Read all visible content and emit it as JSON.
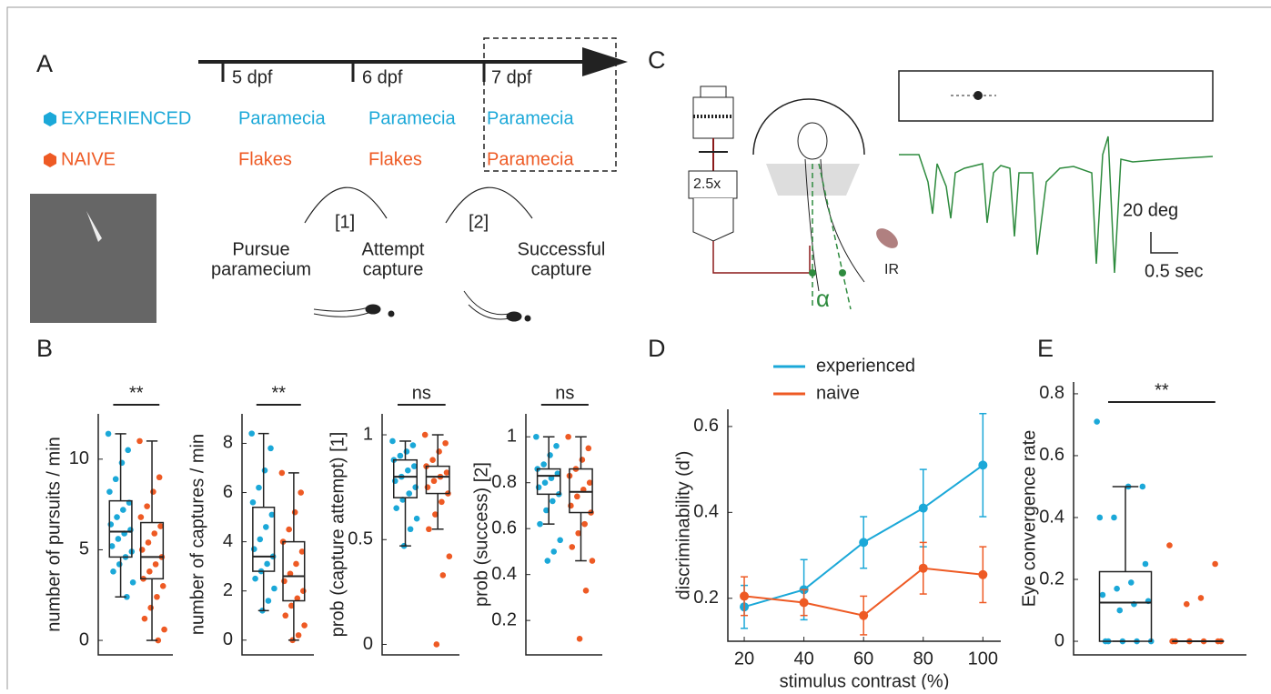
{
  "panel_labels": [
    "A",
    "B",
    "C",
    "D",
    "E"
  ],
  "timeline": {
    "ticks": [
      "5 dpf",
      "6 dpf",
      "7 dpf"
    ]
  },
  "groups": [
    {
      "name": "EXPERIENCED",
      "color": "#1ba8d8",
      "items": [
        "Paramecia",
        "Paramecia",
        "Paramecia"
      ]
    },
    {
      "name": "NAIVE",
      "color": "#ee5a24",
      "items": [
        "Flakes",
        "Flakes",
        "Paramecia"
      ]
    }
  ],
  "steps": [
    "[1]",
    "[2]"
  ],
  "stages": [
    [
      "Pursue",
      "paramecium"
    ],
    [
      "Attempt",
      "capture"
    ],
    [
      "Successful",
      "capture"
    ]
  ],
  "setup": {
    "objective": "2.5x",
    "angle": "α",
    "light": "IR",
    "scale_y": "20 deg",
    "scale_x": "0.5 sec"
  },
  "chart_data": [
    {
      "type": "box",
      "ylabel": "number of pursuits / min",
      "ylim": [
        -0.8,
        12.5
      ],
      "yticks": [
        0,
        5,
        10
      ],
      "annotation": "**",
      "series": [
        {
          "color": "#1ba8d8",
          "stats": {
            "whislo": 2.4,
            "q1": 4.6,
            "med": 6,
            "q3": 7.7,
            "whishi": 11.4
          },
          "points": [
            11.4,
            10.5,
            9.8,
            8.9,
            8.2,
            7.6,
            7.2,
            6.8,
            6.4,
            6.1,
            5.9,
            5.6,
            5.2,
            4.9,
            4.6,
            4.2,
            3.8,
            3.2,
            2.4
          ]
        },
        {
          "color": "#ee5a24",
          "stats": {
            "whislo": 0,
            "q1": 3.4,
            "med": 4.6,
            "q3": 6.5,
            "whishi": 11
          },
          "points": [
            11,
            9,
            8.2,
            7.4,
            6.8,
            6.3,
            5.9,
            5.4,
            5,
            4.6,
            4.2,
            3.8,
            3.4,
            3,
            2.4,
            1.8,
            1.2,
            0.6,
            0
          ]
        }
      ]
    },
    {
      "type": "box",
      "ylabel": "number of captures / min",
      "ylim": [
        -0.6,
        9.2
      ],
      "yticks": [
        0,
        2,
        4,
        6,
        8
      ],
      "annotation": "**",
      "series": [
        {
          "color": "#1ba8d8",
          "stats": {
            "whislo": 1.2,
            "q1": 2.8,
            "med": 3.4,
            "q3": 5.4,
            "whishi": 8.4
          },
          "points": [
            8.4,
            7.8,
            6.9,
            6.2,
            5.6,
            5.1,
            4.6,
            4.1,
            3.7,
            3.4,
            3.1,
            2.8,
            2.5,
            2.1,
            1.6,
            1.2
          ]
        },
        {
          "color": "#ee5a24",
          "stats": {
            "whislo": 0,
            "q1": 1.6,
            "med": 2.6,
            "q3": 4,
            "whishi": 6.8
          },
          "points": [
            6.8,
            6,
            5.2,
            4.5,
            4,
            3.6,
            3.1,
            2.7,
            2.4,
            2,
            1.7,
            1.4,
            1,
            0.6,
            0.2,
            0
          ]
        }
      ]
    },
    {
      "type": "box",
      "ylabel": "prob (capture attempt) [1]",
      "ylim": [
        -0.05,
        1.1
      ],
      "yticks": [
        0,
        0.5,
        1
      ],
      "annotation": "ns",
      "series": [
        {
          "color": "#1ba8d8",
          "stats": {
            "whislo": 0.47,
            "q1": 0.7,
            "med": 0.8,
            "q3": 0.88,
            "whishi": 0.97
          },
          "points": [
            0.97,
            0.95,
            0.92,
            0.9,
            0.88,
            0.85,
            0.83,
            0.8,
            0.78,
            0.75,
            0.72,
            0.69,
            0.65,
            0.6,
            0.55,
            0.47
          ]
        },
        {
          "color": "#ee5a24",
          "stats": {
            "whislo": 0.55,
            "q1": 0.72,
            "med": 0.8,
            "q3": 0.85,
            "whishi": 1
          },
          "points": [
            1,
            0.96,
            0.92,
            0.88,
            0.85,
            0.82,
            0.8,
            0.78,
            0.75,
            0.72,
            0.68,
            0.62,
            0.55,
            0.42,
            0.33,
            0
          ]
        }
      ]
    },
    {
      "type": "box",
      "ylabel": "prob (success) [2]",
      "ylim": [
        0.05,
        1.1
      ],
      "yticks": [
        0.2,
        0.4,
        0.6,
        0.8,
        1
      ],
      "annotation": "ns",
      "series": [
        {
          "color": "#1ba8d8",
          "stats": {
            "whislo": 0.62,
            "q1": 0.75,
            "med": 0.83,
            "q3": 0.86,
            "whishi": 1
          },
          "points": [
            1,
            0.96,
            0.92,
            0.88,
            0.86,
            0.84,
            0.82,
            0.8,
            0.78,
            0.75,
            0.72,
            0.68,
            0.62,
            0.55,
            0.5,
            0.46
          ]
        },
        {
          "color": "#ee5a24",
          "stats": {
            "whislo": 0.46,
            "q1": 0.67,
            "med": 0.76,
            "q3": 0.86,
            "whishi": 1
          },
          "points": [
            1,
            0.95,
            0.9,
            0.86,
            0.83,
            0.8,
            0.77,
            0.74,
            0.7,
            0.67,
            0.62,
            0.58,
            0.52,
            0.46,
            0.33,
            0.12
          ]
        }
      ]
    },
    {
      "type": "line",
      "xlabel": "stimulus contrast (%)",
      "ylabel": "discriminability (d')",
      "x": [
        20,
        40,
        60,
        80,
        100
      ],
      "xlim": [
        14.5,
        106
      ],
      "xticks": [
        20,
        40,
        60,
        80,
        100
      ],
      "ylim": [
        0.1,
        0.64
      ],
      "yticks": [
        0.2,
        0.4,
        0.6
      ],
      "series": [
        {
          "name": "experienced",
          "color": "#1ba8d8",
          "values": [
            0.18,
            0.22,
            0.33,
            0.41,
            0.51
          ],
          "errors": [
            0.05,
            0.07,
            0.06,
            0.09,
            0.12
          ]
        },
        {
          "name": "naive",
          "color": "#ee5a24",
          "values": [
            0.205,
            0.19,
            0.16,
            0.27,
            0.255
          ],
          "errors": [
            0.045,
            0.03,
            0.045,
            0.06,
            0.065
          ]
        }
      ]
    },
    {
      "type": "box",
      "ylabel": "Eye convergence rate",
      "ylim": [
        -0.044,
        0.838
      ],
      "yticks": [
        0,
        0.2,
        0.4,
        0.6,
        0.8
      ],
      "annotation": "**",
      "series": [
        {
          "color": "#1ba8d8",
          "stats": {
            "whislo": 0,
            "q1": 0,
            "med": 0.125,
            "q3": 0.225,
            "whishi": 0.5
          },
          "points": [
            0.71,
            0.5,
            0.5,
            0.4,
            0.4,
            0.25,
            0.19,
            0.17,
            0.15,
            0.13,
            0.12,
            0.1,
            0,
            0,
            0,
            0,
            0
          ]
        },
        {
          "color": "#ee5a24",
          "stats": {
            "whislo": 0,
            "q1": 0,
            "med": 0,
            "q3": 0,
            "whishi": 0
          },
          "points": [
            0.31,
            0.25,
            0.14,
            0.12,
            0,
            0,
            0,
            0,
            0,
            0
          ]
        }
      ]
    }
  ]
}
